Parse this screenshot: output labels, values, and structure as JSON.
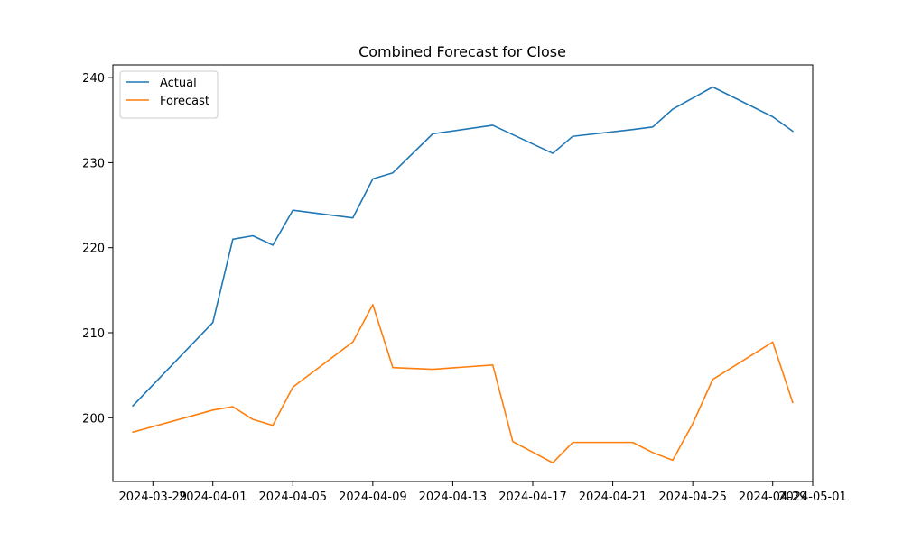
{
  "chart_data": {
    "type": "line",
    "title": "Combined Forecast for Close",
    "xlabel": "",
    "ylabel": "",
    "x_axis": {
      "type": "date",
      "range": [
        "2024-03-27",
        "2024-05-01"
      ],
      "ticks": [
        "2024-03-29",
        "2024-04-01",
        "2024-04-05",
        "2024-04-09",
        "2024-04-13",
        "2024-04-17",
        "2024-04-21",
        "2024-04-25",
        "2024-04-29",
        "2024-05-01"
      ]
    },
    "y_axis": {
      "range": [
        192.5,
        241.5
      ],
      "ticks": [
        200,
        210,
        220,
        230,
        240
      ]
    },
    "grid": false,
    "legend_position": "top-left",
    "series": [
      {
        "name": "Actual",
        "color": "#1f77b4",
        "points": [
          [
            "2024-03-28",
            201.4
          ],
          [
            "2024-04-01",
            211.2
          ],
          [
            "2024-04-02",
            221.0
          ],
          [
            "2024-04-03",
            221.4
          ],
          [
            "2024-04-04",
            220.3
          ],
          [
            "2024-04-05",
            224.4
          ],
          [
            "2024-04-08",
            223.5
          ],
          [
            "2024-04-09",
            228.1
          ],
          [
            "2024-04-10",
            228.8
          ],
          [
            "2024-04-12",
            233.4
          ],
          [
            "2024-04-15",
            234.4
          ],
          [
            "2024-04-16",
            233.3
          ],
          [
            "2024-04-18",
            231.1
          ],
          [
            "2024-04-19",
            233.1
          ],
          [
            "2024-04-22",
            233.9
          ],
          [
            "2024-04-23",
            234.2
          ],
          [
            "2024-04-24",
            236.3
          ],
          [
            "2024-04-25",
            237.6
          ],
          [
            "2024-04-26",
            238.9
          ],
          [
            "2024-04-29",
            235.4
          ],
          [
            "2024-04-30",
            233.7
          ]
        ]
      },
      {
        "name": "Forecast",
        "color": "#ff7f0e",
        "points": [
          [
            "2024-03-28",
            198.3
          ],
          [
            "2024-04-01",
            200.9
          ],
          [
            "2024-04-02",
            201.3
          ],
          [
            "2024-04-03",
            199.8
          ],
          [
            "2024-04-04",
            199.1
          ],
          [
            "2024-04-05",
            203.6
          ],
          [
            "2024-04-08",
            208.9
          ],
          [
            "2024-04-09",
            213.3
          ],
          [
            "2024-04-10",
            205.9
          ],
          [
            "2024-04-12",
            205.7
          ],
          [
            "2024-04-15",
            206.2
          ],
          [
            "2024-04-16",
            197.2
          ],
          [
            "2024-04-18",
            194.7
          ],
          [
            "2024-04-19",
            197.1
          ],
          [
            "2024-04-22",
            197.1
          ],
          [
            "2024-04-23",
            195.9
          ],
          [
            "2024-04-24",
            195.0
          ],
          [
            "2024-04-25",
            199.3
          ],
          [
            "2024-04-26",
            204.5
          ],
          [
            "2024-04-29",
            208.9
          ],
          [
            "2024-04-30",
            201.8
          ]
        ]
      }
    ]
  }
}
